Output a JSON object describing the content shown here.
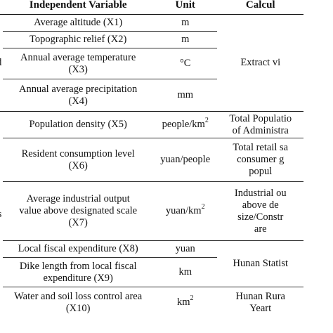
{
  "headers": {
    "layer": "ver",
    "variable": "Independent Variable",
    "unit": "Unit",
    "calc": "Calcul"
  },
  "groups": {
    "g1": "d",
    "g2": "ors"
  },
  "rows": [
    {
      "var": "Average altitude (X1)",
      "unit": "m"
    },
    {
      "var": "Topographic relief (X2)",
      "unit": "m"
    },
    {
      "var_l1": "Annual average temperature",
      "var_l2": "(X3)",
      "unit": "°C"
    },
    {
      "var_l1": "Annual average precipitation",
      "var_l2": "(X4)",
      "unit": "mm"
    },
    {
      "var": "Population density (X5)",
      "unit_base": "people/km",
      "unit_sup": "2"
    },
    {
      "var_l1": "Resident consumption level",
      "var_l2": "(X6)",
      "unit": "yuan/people"
    },
    {
      "var_l1": "Average industrial output",
      "var_l2": "value above designated scale",
      "var_l3": "(X7)",
      "unit_base": "yuan/km",
      "unit_sup": "2"
    },
    {
      "var": "Local fiscal expenditure (X8)",
      "unit": "yuan"
    },
    {
      "var_l1": "Dike length from local fiscal",
      "var_l2": "expenditure (X9)",
      "unit": "km"
    },
    {
      "var_l1": "Water and soil loss control area",
      "var_l2": "(X10)",
      "unit_base": "km",
      "unit_sup": "2"
    }
  ],
  "calc": {
    "extract": "Extract vi",
    "pop_l1": "Total Populatio",
    "pop_l2": "of Administra",
    "retail_l1": "Total retail sa",
    "retail_l2": "consumer g",
    "retail_l3": "popul",
    "ind_l1": "Industrial ou",
    "ind_l2": "above de",
    "ind_l3": "size/Constr",
    "ind_l4": "are",
    "hunan_stat": "Hunan Statist",
    "rural_l1": "Hunan Rura",
    "rural_l2": "Yeart"
  }
}
